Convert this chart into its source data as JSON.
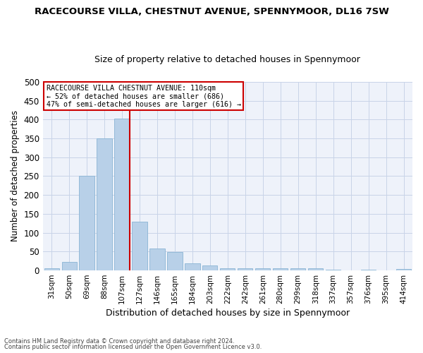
{
  "title": "RACECOURSE VILLA, CHESTNUT AVENUE, SPENNYMOOR, DL16 7SW",
  "subtitle": "Size of property relative to detached houses in Spennymoor",
  "xlabel": "Distribution of detached houses by size in Spennymoor",
  "ylabel": "Number of detached properties",
  "categories": [
    "31sqm",
    "50sqm",
    "69sqm",
    "88sqm",
    "107sqm",
    "127sqm",
    "146sqm",
    "165sqm",
    "184sqm",
    "203sqm",
    "222sqm",
    "242sqm",
    "261sqm",
    "280sqm",
    "299sqm",
    "318sqm",
    "337sqm",
    "357sqm",
    "376sqm",
    "395sqm",
    "414sqm"
  ],
  "values": [
    6,
    23,
    250,
    350,
    403,
    130,
    58,
    48,
    18,
    14,
    6,
    5,
    5,
    6,
    6,
    5,
    2,
    0,
    2,
    0,
    3
  ],
  "bar_color": "#b8d0e8",
  "bar_edge_color": "#8ab4d4",
  "highlight_line_color": "#cc0000",
  "highlight_line_index": 4,
  "ylim": [
    0,
    500
  ],
  "yticks": [
    0,
    50,
    100,
    150,
    200,
    250,
    300,
    350,
    400,
    450,
    500
  ],
  "grid_color": "#c8d4e8",
  "annotation_text_line1": "RACECOURSE VILLA CHESTNUT AVENUE: 110sqm",
  "annotation_text_line2": "← 52% of detached houses are smaller (686)",
  "annotation_text_line3": "47% of semi-detached houses are larger (616) →",
  "annotation_box_color": "#ffffff",
  "annotation_box_edge": "#cc0000",
  "footnote1": "Contains HM Land Registry data © Crown copyright and database right 2024.",
  "footnote2": "Contains public sector information licensed under the Open Government Licence v3.0.",
  "fig_bg_color": "#ffffff",
  "plot_bg_color": "#eef2fa",
  "title_fontsize": 9.5,
  "subtitle_fontsize": 9.0,
  "ylabel_fontsize": 8.5,
  "xlabel_fontsize": 9.0
}
